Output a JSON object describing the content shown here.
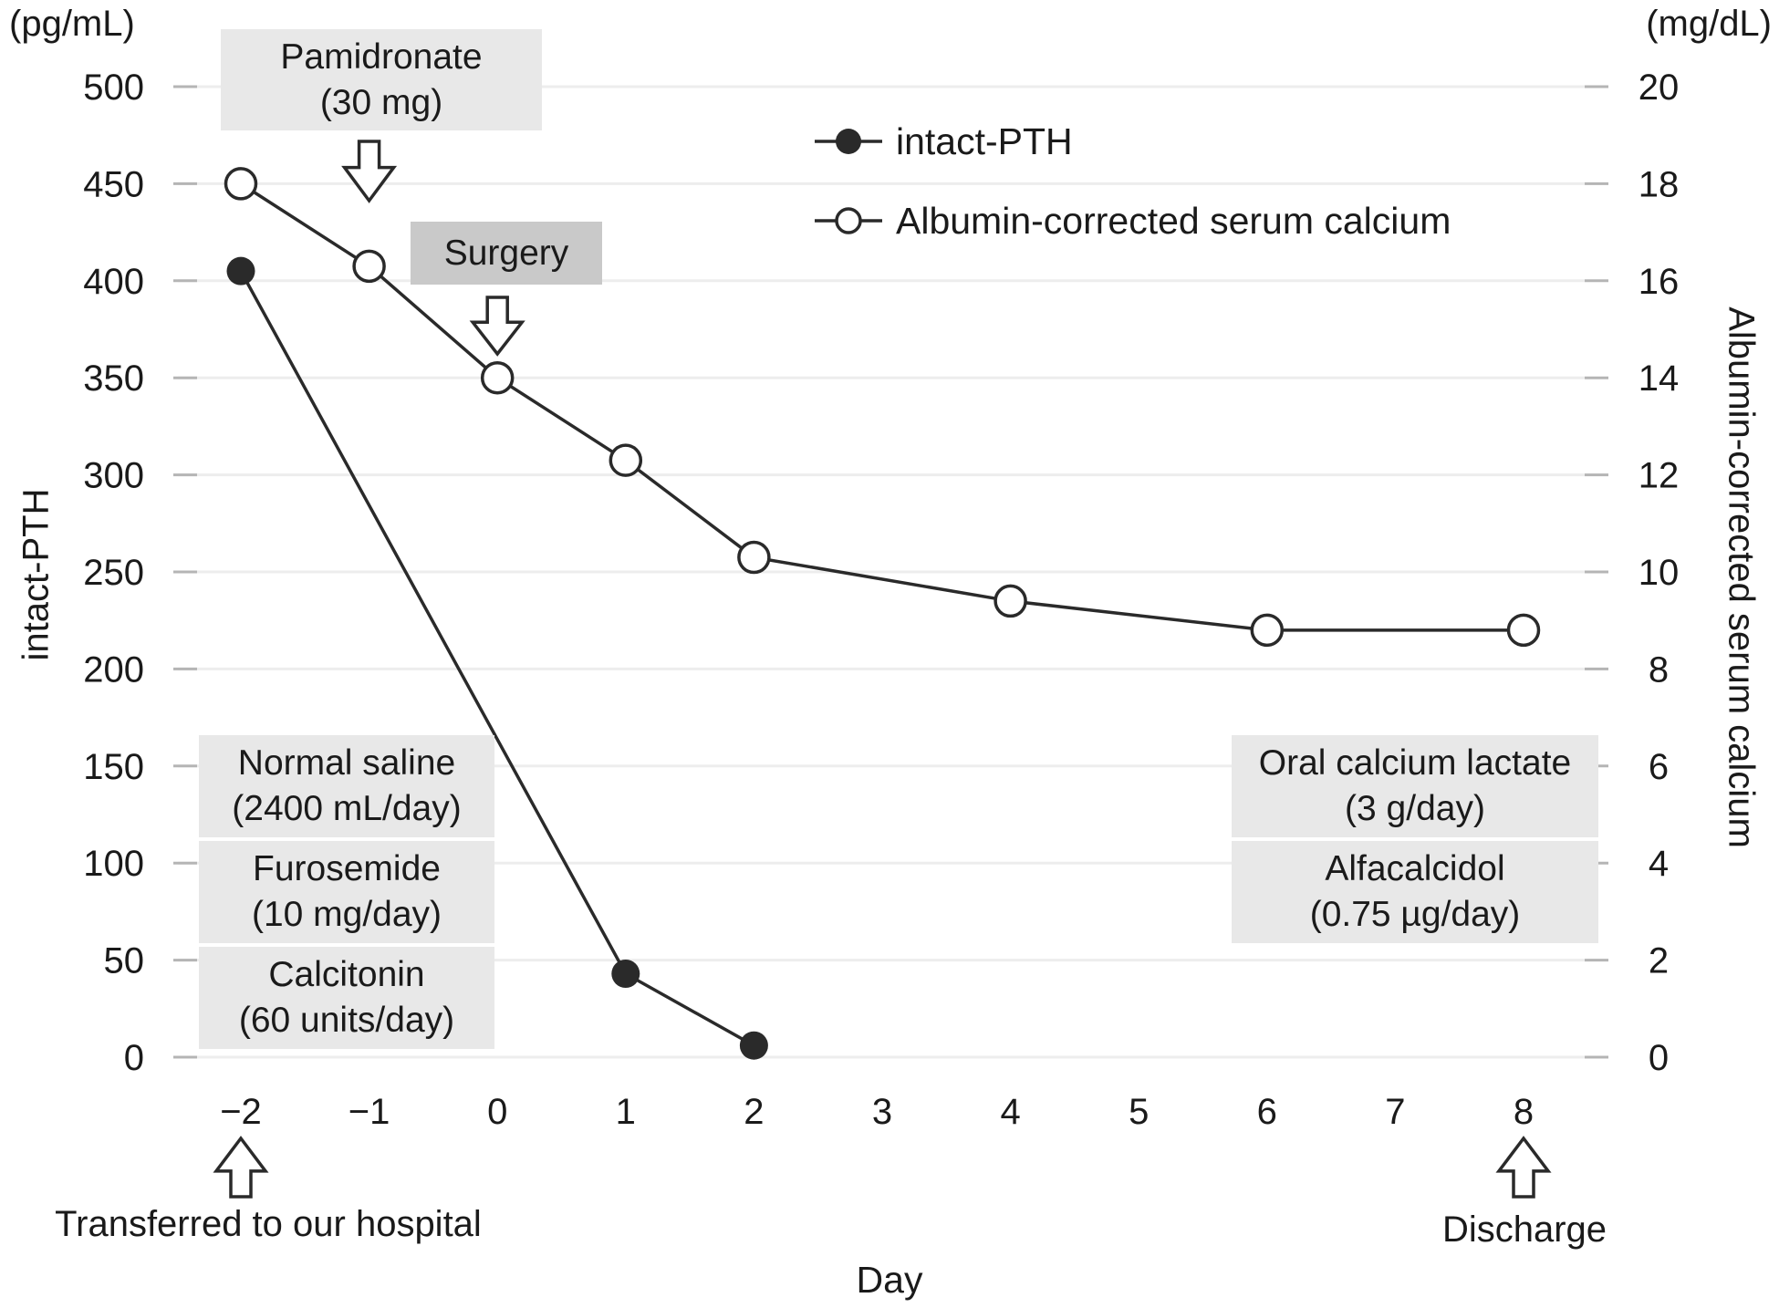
{
  "colors": {
    "line": "#2a2a2a",
    "grid": "#ededed",
    "tick": "#b5b5b5",
    "text": "#1a1a1a",
    "box_light": "#e8e8e8",
    "box_dark": "#c9c9c9"
  },
  "chart_data": {
    "type": "line",
    "title": "",
    "grid": "horizontal",
    "legend_position": "top-center",
    "x_axis": {
      "label": "Day",
      "range": [
        -2,
        8
      ],
      "ticks": [
        {
          "value": -2,
          "label": "−2"
        },
        {
          "value": -1,
          "label": "−1"
        },
        {
          "value": 0,
          "label": "0"
        },
        {
          "value": 1,
          "label": "1"
        },
        {
          "value": 2,
          "label": "2"
        },
        {
          "value": 3,
          "label": "3"
        },
        {
          "value": 4,
          "label": "4"
        },
        {
          "value": 5,
          "label": "5"
        },
        {
          "value": 6,
          "label": "6"
        },
        {
          "value": 7,
          "label": "7"
        },
        {
          "value": 8,
          "label": "8"
        }
      ]
    },
    "left_axis": {
      "unit": "(pg/mL)",
      "title": "intact-PTH",
      "range": [
        0,
        500
      ],
      "ticks": [
        500,
        450,
        400,
        350,
        300,
        250,
        200,
        150,
        100,
        50,
        0
      ]
    },
    "right_axis": {
      "unit": "(mg/dL)",
      "title": "Albumin-corrected serum calcium",
      "range": [
        0,
        20
      ],
      "ticks": [
        20,
        18,
        16,
        14,
        12,
        10,
        8,
        6,
        4,
        2,
        0
      ]
    },
    "series": [
      {
        "name": "intact-PTH",
        "axis": "left",
        "marker": "filled-circle",
        "points": [
          {
            "x": -2,
            "y": 405
          },
          {
            "x": 1,
            "y": 43
          },
          {
            "x": 2,
            "y": 6
          }
        ]
      },
      {
        "name": "Albumin-corrected serum calcium",
        "axis": "right",
        "marker": "open-circle",
        "points": [
          {
            "x": -2,
            "y": 18.0
          },
          {
            "x": -1,
            "y": 16.3
          },
          {
            "x": 0,
            "y": 14.0
          },
          {
            "x": 1,
            "y": 12.3
          },
          {
            "x": 2,
            "y": 10.3
          },
          {
            "x": 4,
            "y": 9.4
          },
          {
            "x": 6,
            "y": 8.8
          },
          {
            "x": 8,
            "y": 8.8
          }
        ]
      }
    ],
    "annotations": {
      "pamidronate": {
        "line1": "Pamidronate",
        "line2": "(30 mg)",
        "arrow_at_day": -1
      },
      "surgery": {
        "label": "Surgery",
        "arrow_at_day": 0
      },
      "left_boxes": [
        {
          "line1": "Normal saline",
          "line2": "(2400 mL/day)"
        },
        {
          "line1": "Furosemide",
          "line2": "(10 mg/day)"
        },
        {
          "line1": "Calcitonin",
          "line2": "(60 units/day)"
        }
      ],
      "right_boxes": [
        {
          "line1": "Oral calcium lactate",
          "line2": "(3 g/day)"
        },
        {
          "line1": "Alfacalcidol",
          "line2": "(0.75 µg/day)"
        }
      ],
      "transferred": {
        "label": "Transferred to our hospital",
        "arrow_at_day": -2
      },
      "discharge": {
        "label": "Discharge",
        "arrow_at_day": 8
      }
    }
  }
}
